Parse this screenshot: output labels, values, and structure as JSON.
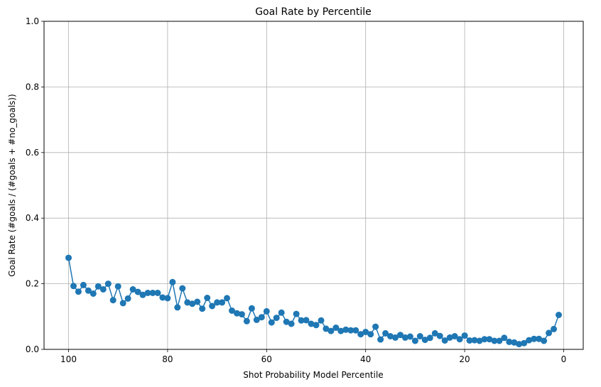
{
  "chart_data": {
    "type": "line",
    "title": "Goal Rate by Percentile",
    "xlabel": "Shot Probability Model Percentile",
    "ylabel": "Goal Rate (#goals / (#goals + #no_goals))",
    "xlim": [
      104.95,
      -3.95
    ],
    "ylim": [
      0,
      1
    ],
    "x_inverted": true,
    "grid": true,
    "x_ticks": [
      100,
      80,
      60,
      40,
      20,
      0
    ],
    "x_tick_labels": [
      "100",
      "80",
      "60",
      "40",
      "20",
      "0"
    ],
    "y_ticks": [
      0,
      0.2,
      0.4,
      0.6,
      0.8,
      1.0
    ],
    "y_tick_labels": [
      "0.0",
      "0.2",
      "0.4",
      "0.6",
      "0.8",
      "1.0"
    ],
    "color": "#1f77b4",
    "marker": "circle",
    "x": [
      100,
      99,
      98,
      97,
      96,
      95,
      94,
      93,
      92,
      91,
      90,
      89,
      88,
      87,
      86,
      85,
      84,
      83,
      82,
      81,
      80,
      79,
      78,
      77,
      76,
      75,
      74,
      73,
      72,
      71,
      70,
      69,
      68,
      67,
      66,
      65,
      64,
      63,
      62,
      61,
      60,
      59,
      58,
      57,
      56,
      55,
      54,
      53,
      52,
      51,
      50,
      49,
      48,
      47,
      46,
      45,
      44,
      43,
      42,
      41,
      40,
      39,
      38,
      37,
      36,
      35,
      34,
      33,
      32,
      31,
      30,
      29,
      28,
      27,
      26,
      25,
      24,
      23,
      22,
      21,
      20,
      19,
      18,
      17,
      16,
      15,
      14,
      13,
      12,
      11,
      10,
      9,
      8,
      7,
      6,
      5,
      4,
      3,
      2,
      1
    ],
    "y": [
      0.279,
      0.193,
      0.176,
      0.196,
      0.179,
      0.17,
      0.192,
      0.183,
      0.2,
      0.15,
      0.192,
      0.141,
      0.155,
      0.183,
      0.175,
      0.166,
      0.172,
      0.172,
      0.172,
      0.158,
      0.156,
      0.205,
      0.128,
      0.186,
      0.143,
      0.139,
      0.145,
      0.124,
      0.157,
      0.132,
      0.143,
      0.143,
      0.156,
      0.118,
      0.11,
      0.107,
      0.086,
      0.125,
      0.09,
      0.098,
      0.116,
      0.082,
      0.096,
      0.112,
      0.084,
      0.078,
      0.108,
      0.088,
      0.089,
      0.078,
      0.074,
      0.088,
      0.063,
      0.056,
      0.066,
      0.056,
      0.06,
      0.058,
      0.058,
      0.046,
      0.053,
      0.046,
      0.069,
      0.03,
      0.049,
      0.04,
      0.036,
      0.044,
      0.036,
      0.039,
      0.026,
      0.04,
      0.029,
      0.035,
      0.049,
      0.041,
      0.027,
      0.036,
      0.04,
      0.031,
      0.042,
      0.027,
      0.028,
      0.026,
      0.031,
      0.031,
      0.026,
      0.026,
      0.035,
      0.023,
      0.021,
      0.016,
      0.019,
      0.028,
      0.032,
      0.032,
      0.026,
      0.05,
      0.062,
      0.105
    ]
  }
}
